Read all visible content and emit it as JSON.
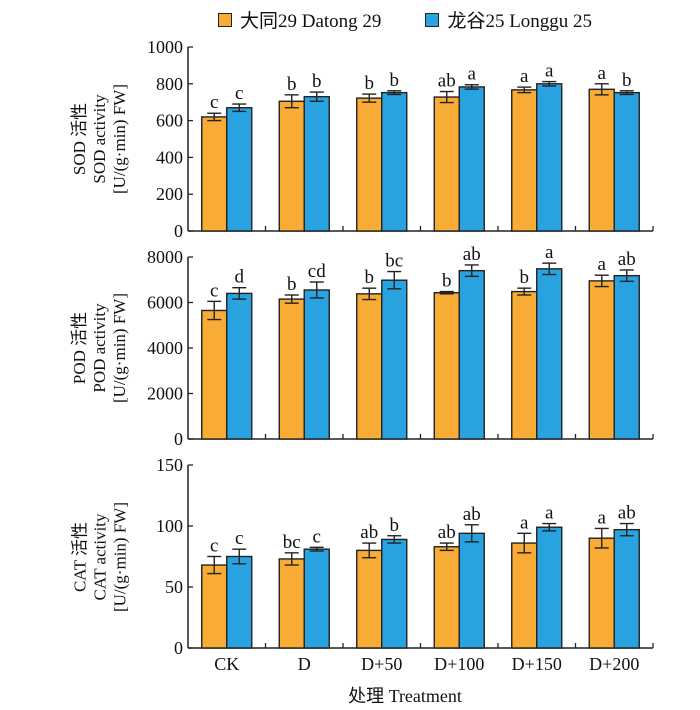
{
  "legend": {
    "series1": {
      "label": "大同29 Datong 29",
      "color": "#F8AC36"
    },
    "series2": {
      "label": "龙谷25 Longgu 25",
      "color": "#29A3DF"
    }
  },
  "xlabel": "处理 Treatment",
  "chart_data": [
    {
      "type": "bar",
      "id": "sod",
      "ylabel_lines": [
        "SOD 活性",
        "SOD activity",
        "[U/(g·min) FW]"
      ],
      "categories": [
        "CK",
        "D",
        "D+50",
        "D+100",
        "D+150",
        "D+200"
      ],
      "ylim": [
        0,
        1000
      ],
      "yticks": [
        0,
        200,
        400,
        600,
        800,
        1000
      ],
      "series": [
        {
          "name": "大同29 Datong 29",
          "values": [
            620,
            705,
            722,
            728,
            767,
            770
          ],
          "errors": [
            20,
            35,
            22,
            30,
            15,
            30
          ],
          "letters": [
            "c",
            "b",
            "b",
            "ab",
            "a",
            "a"
          ]
        },
        {
          "name": "龙谷25 Longgu 25",
          "values": [
            670,
            730,
            752,
            783,
            800,
            752
          ],
          "errors": [
            20,
            25,
            10,
            12,
            12,
            10
          ],
          "letters": [
            "c",
            "b",
            "b",
            "a",
            "a",
            "b"
          ]
        }
      ]
    },
    {
      "type": "bar",
      "id": "pod",
      "ylabel_lines": [
        "POD 活性",
        "POD activity",
        "[U/(g·min) FW]"
      ],
      "categories": [
        "CK",
        "D",
        "D+50",
        "D+100",
        "D+150",
        "D+200"
      ],
      "ylim": [
        0,
        8000
      ],
      "yticks": [
        0,
        2000,
        4000,
        6000,
        8000
      ],
      "series": [
        {
          "name": "大同29 Datong 29",
          "values": [
            5650,
            6150,
            6380,
            6430,
            6480,
            6950
          ],
          "errors": [
            400,
            180,
            250,
            50,
            150,
            250
          ],
          "letters": [
            "c",
            "b",
            "b",
            "b",
            "b",
            "a"
          ]
        },
        {
          "name": "龙谷25 Longgu 25",
          "values": [
            6400,
            6550,
            6980,
            7400,
            7480,
            7180
          ],
          "errors": [
            250,
            350,
            380,
            250,
            250,
            250
          ],
          "letters": [
            "d",
            "cd",
            "bc",
            "ab",
            "a",
            "ab"
          ]
        }
      ]
    },
    {
      "type": "bar",
      "id": "cat",
      "ylabel_lines": [
        "CAT 活性",
        "CAT activity",
        "[U/(g·min) FW]"
      ],
      "categories": [
        "CK",
        "D",
        "D+50",
        "D+100",
        "D+150",
        "D+200"
      ],
      "ylim": [
        0,
        150
      ],
      "yticks": [
        0,
        50,
        100,
        150
      ],
      "series": [
        {
          "name": "大同29 Datong 29",
          "values": [
            68,
            73,
            80,
            83,
            86,
            90
          ],
          "errors": [
            7,
            5,
            6,
            3,
            8,
            8
          ],
          "letters": [
            "c",
            "bc",
            "ab",
            "ab",
            "a",
            "a"
          ]
        },
        {
          "name": "龙谷25 Longgu 25",
          "values": [
            75,
            81,
            89,
            94,
            99,
            97
          ],
          "errors": [
            6,
            1.5,
            3,
            7,
            3,
            5
          ],
          "letters": [
            "c",
            "c",
            "b",
            "ab",
            "a",
            "ab"
          ]
        }
      ]
    }
  ]
}
